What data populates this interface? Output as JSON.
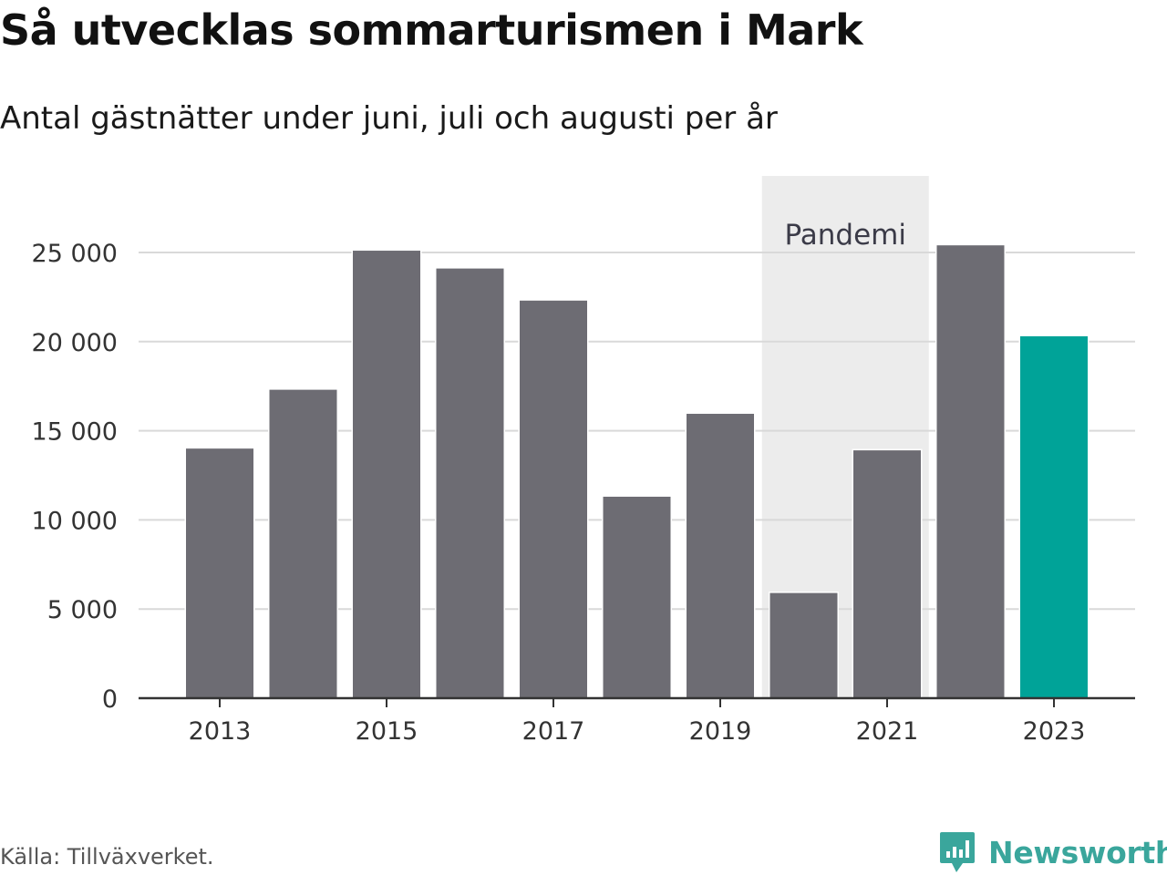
{
  "title": "Så utvecklas sommarturismen i Mark",
  "subtitle": "Antal gästnätter under juni, juli och augusti per år",
  "source": "Källa: Tillväxverket.",
  "brand": {
    "name": "Newsworthy",
    "color": "#3aa69c",
    "icon": "newsworthy-logo-icon"
  },
  "chart_data": {
    "type": "bar",
    "categories": [
      "2013",
      "2014",
      "2015",
      "2016",
      "2017",
      "2018",
      "2019",
      "2020",
      "2021",
      "2022",
      "2023"
    ],
    "values": [
      14000,
      17300,
      25100,
      24100,
      22300,
      11300,
      15950,
      5900,
      13900,
      25400,
      20300
    ],
    "x_tick_labels": [
      "2013",
      "2015",
      "2017",
      "2019",
      "2021",
      "2023"
    ],
    "y_tick_labels": [
      "0",
      "5 000",
      "10 000",
      "15 000",
      "20 000",
      "25 000"
    ],
    "y_ticks": [
      0,
      5000,
      10000,
      15000,
      20000,
      25000
    ],
    "ylim": [
      0,
      25000
    ],
    "xlabel": "",
    "ylabel": "",
    "grid": true,
    "highlight": {
      "category": "2023",
      "color": "#00a398"
    },
    "bar_color": "#6d6c73",
    "annotation_band": {
      "label": "Pandemi",
      "from": "2020",
      "to": "2021",
      "color": "#ececec"
    }
  }
}
